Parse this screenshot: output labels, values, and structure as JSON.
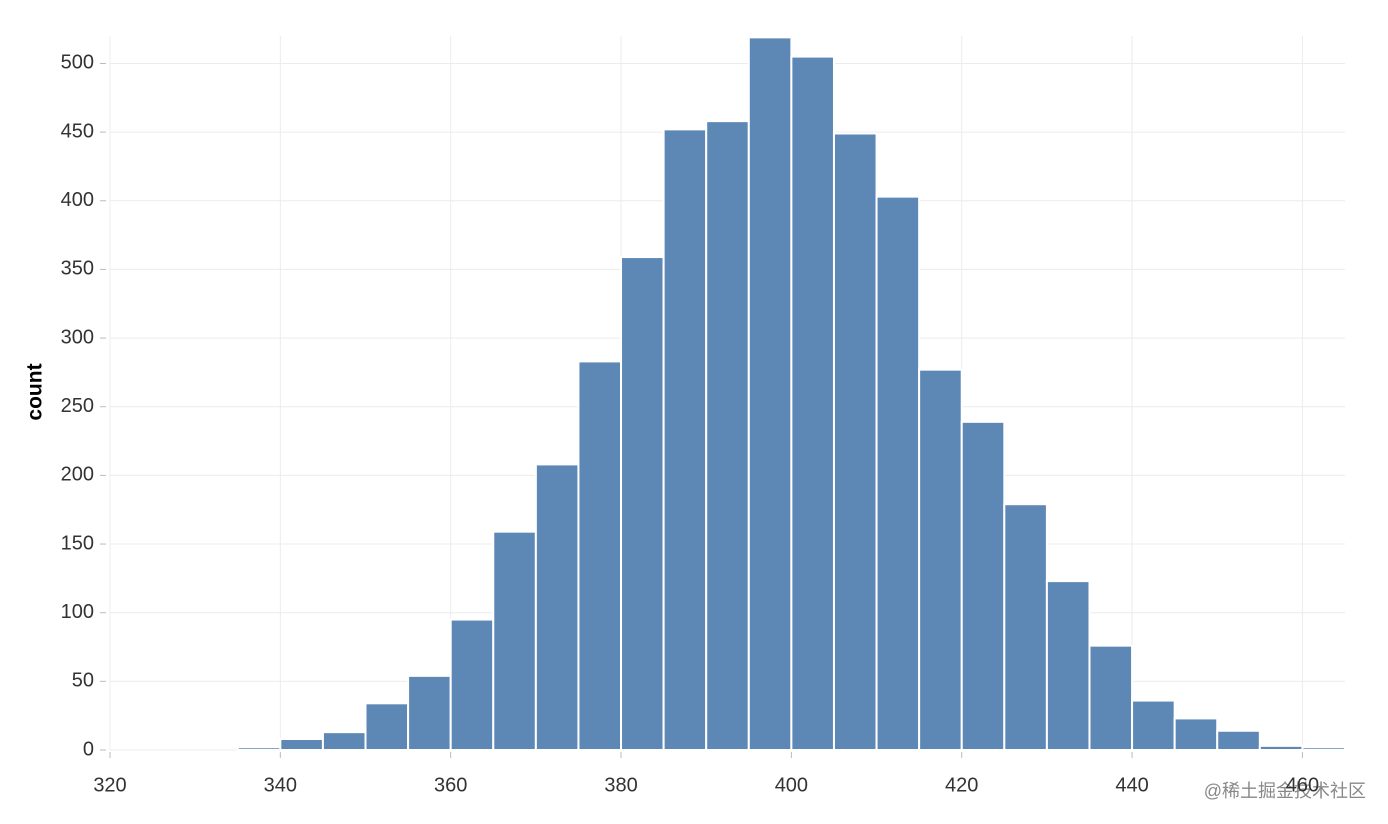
{
  "chart_data": {
    "type": "histogram",
    "y_label": "count",
    "watermark": "@稀土掘金技术社区",
    "bins": [
      325,
      330,
      335,
      340,
      345,
      350,
      355,
      360,
      365,
      370,
      375,
      380,
      385,
      390,
      395,
      400,
      405,
      410,
      415,
      420,
      425,
      430,
      435,
      440,
      445,
      450,
      455,
      460,
      465
    ],
    "counts": [
      0,
      0,
      2,
      8,
      13,
      34,
      54,
      95,
      159,
      208,
      283,
      359,
      452,
      458,
      519,
      505,
      449,
      403,
      277,
      239,
      179,
      123,
      76,
      36,
      23,
      14,
      3,
      2
    ],
    "color": "#5d87b5",
    "xlim": [
      320,
      465
    ],
    "xticks": [
      320,
      340,
      360,
      380,
      400,
      420,
      440,
      460
    ],
    "ylim": [
      0,
      520
    ],
    "yticks": [
      0,
      50,
      100,
      150,
      200,
      250,
      300,
      350,
      400,
      450,
      500
    ],
    "grid": true
  }
}
